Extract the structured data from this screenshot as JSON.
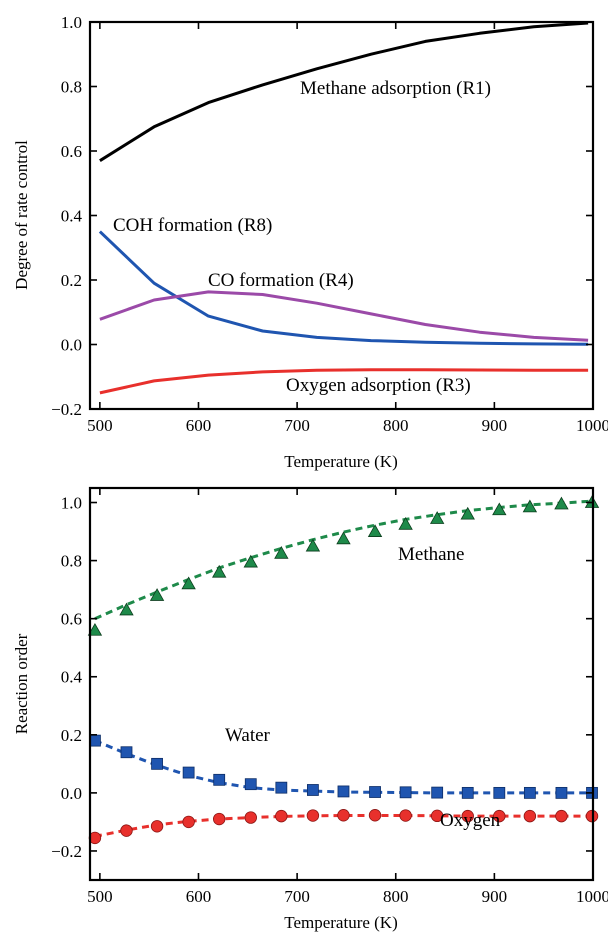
{
  "chart_data": [
    {
      "type": "line",
      "xlabel": "Temperature (K)",
      "ylabel": "Degree of rate control",
      "xlim": [
        490,
        1000
      ],
      "ylim": [
        -0.2,
        1.0
      ],
      "xticks": [
        500,
        600,
        700,
        800,
        900,
        1000
      ],
      "yticks": [
        -0.2,
        0.0,
        0.2,
        0.4,
        0.6,
        0.8,
        1.0
      ],
      "xtick_labels": [
        "500",
        "600",
        "700",
        "800",
        "900",
        "1000"
      ],
      "ytick_labels": [
        "−0.2",
        "0.0",
        "0.2",
        "0.4",
        "0.6",
        "0.8",
        "1.0"
      ],
      "grid": false,
      "x": [
        500,
        555,
        610,
        665,
        720,
        775,
        830,
        885,
        940,
        995
      ],
      "series": [
        {
          "name": "Methane adsorption (R1)",
          "color": "#000000",
          "values": [
            0.57,
            0.675,
            0.75,
            0.805,
            0.855,
            0.9,
            0.94,
            0.965,
            0.985,
            0.997
          ]
        },
        {
          "name": "COH formation (R8)",
          "color": "#1f55b0",
          "values": [
            0.35,
            0.19,
            0.088,
            0.042,
            0.022,
            0.012,
            0.007,
            0.004,
            0.002,
            0.001
          ]
        },
        {
          "name": "CO formation (R4)",
          "color": "#9b4aa8",
          "values": [
            0.078,
            0.138,
            0.163,
            0.155,
            0.128,
            0.095,
            0.062,
            0.038,
            0.022,
            0.013
          ]
        },
        {
          "name": "Oxygen adsorption (R3)",
          "color": "#e8302c",
          "values": [
            -0.15,
            -0.113,
            -0.095,
            -0.085,
            -0.08,
            -0.078,
            -0.078,
            -0.079,
            -0.08,
            -0.08
          ]
        }
      ]
    },
    {
      "type": "line",
      "xlabel": "Temperature (K)",
      "ylabel": "Reaction order",
      "xlim": [
        490,
        1000
      ],
      "ylim": [
        -0.3,
        1.05
      ],
      "xticks": [
        500,
        600,
        700,
        800,
        900,
        1000
      ],
      "yticks": [
        -0.2,
        0.0,
        0.2,
        0.4,
        0.6,
        0.8,
        1.0
      ],
      "xtick_labels": [
        "500",
        "600",
        "700",
        "800",
        "900",
        "1000"
      ],
      "ytick_labels": [
        "−0.2",
        "0.0",
        "0.2",
        "0.4",
        "0.6",
        "0.8",
        "1.0"
      ],
      "grid": false,
      "x": [
        495,
        527,
        558,
        590,
        621,
        653,
        684,
        716,
        747,
        779,
        810,
        842,
        873,
        905,
        936,
        968,
        999
      ],
      "series": [
        {
          "name": "Methane",
          "color": "#1e8a4a",
          "marker": "triangle",
          "values": [
            0.56,
            0.63,
            0.68,
            0.72,
            0.76,
            0.795,
            0.825,
            0.85,
            0.875,
            0.9,
            0.925,
            0.945,
            0.96,
            0.975,
            0.985,
            0.995,
            1.0
          ],
          "fit_values": [
            0.6,
            0.648,
            0.692,
            0.735,
            0.775,
            0.81,
            0.842,
            0.872,
            0.898,
            0.922,
            0.942,
            0.958,
            0.972,
            0.983,
            0.992,
            0.998,
            1.005
          ]
        },
        {
          "name": "Water",
          "color": "#1f55b0",
          "marker": "square",
          "values": [
            0.18,
            0.14,
            0.1,
            0.07,
            0.045,
            0.03,
            0.018,
            0.01,
            0.005,
            0.003,
            0.002,
            0.001,
            0.0,
            0.0,
            0.0,
            0.0,
            0.0
          ],
          "fit_values": [
            0.18,
            0.135,
            0.095,
            0.06,
            0.035,
            0.018,
            0.01,
            0.006,
            0.003,
            0.002,
            0.001,
            0.0,
            0.0,
            0.0,
            0.0,
            0.0,
            0.0
          ]
        },
        {
          "name": "Oxygen",
          "color": "#e8302c",
          "marker": "circle",
          "values": [
            -0.155,
            -0.13,
            -0.115,
            -0.1,
            -0.09,
            -0.085,
            -0.08,
            -0.078,
            -0.077,
            -0.077,
            -0.078,
            -0.079,
            -0.08,
            -0.08,
            -0.08,
            -0.08,
            -0.08
          ],
          "fit_values": [
            -0.15,
            -0.128,
            -0.11,
            -0.098,
            -0.09,
            -0.085,
            -0.081,
            -0.079,
            -0.078,
            -0.078,
            -0.078,
            -0.079,
            -0.08,
            -0.08,
            -0.08,
            -0.08,
            -0.08
          ]
        }
      ]
    }
  ]
}
